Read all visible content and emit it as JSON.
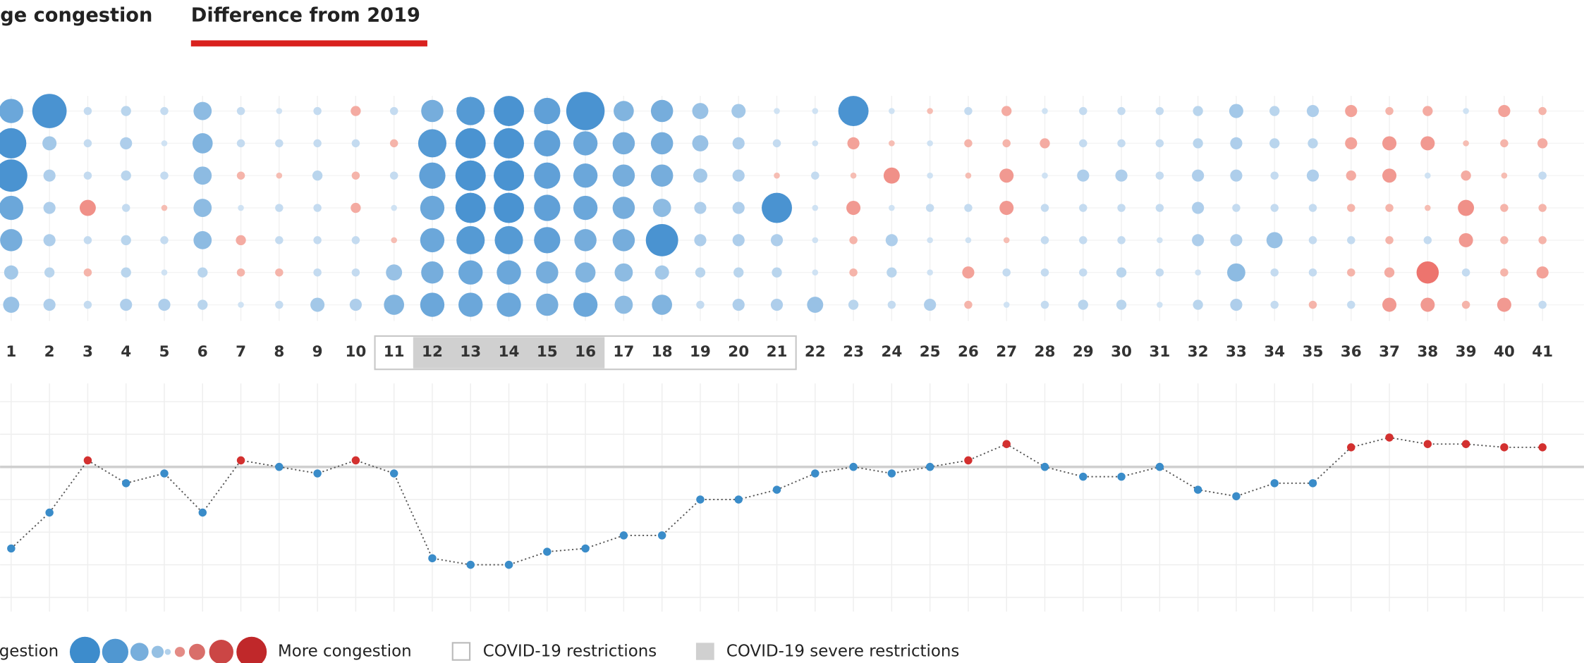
{
  "tabs": [
    "ge congestion",
    "Difference from 2019"
  ],
  "legend": {
    "less": "gestion",
    "more": "More congestion",
    "restrictions": "COVID-19 restrictions",
    "severe": "COVID-19 severe restrictions"
  },
  "chart_data": [
    {
      "type": "bubble_matrix",
      "categories": [
        1,
        2,
        3,
        4,
        5,
        6,
        7,
        8,
        9,
        10,
        11,
        12,
        13,
        14,
        15,
        16,
        17,
        18,
        19,
        20,
        21,
        22,
        23,
        24,
        25,
        26,
        27,
        28,
        29,
        30,
        31,
        32,
        33,
        34,
        35,
        36,
        37,
        38,
        39,
        40,
        41
      ],
      "restrictions": [
        11,
        21
      ],
      "severe_restrictions": [
        12,
        16
      ],
      "colors": {
        "less": [
          "#cfe2f3",
          "#4a93d1"
        ],
        "more": [
          "#f6bdb3",
          "#e8504c"
        ]
      },
      "columns": [
        [
          -12,
          -15,
          -16,
          -12,
          -11,
          -7,
          -8
        ],
        [
          -17,
          -7,
          -6,
          -6,
          -6,
          -5,
          -6
        ],
        [
          -4,
          -4,
          -4,
          8,
          -4,
          4,
          -4
        ],
        [
          -5,
          -6,
          -5,
          -4,
          -5,
          -5,
          -6
        ],
        [
          -4,
          -3,
          -4,
          3,
          -4,
          -3,
          -6
        ],
        [
          -9,
          -10,
          -9,
          -9,
          -9,
          -5,
          -5
        ],
        [
          -4,
          -4,
          4,
          -3,
          5,
          4,
          -3
        ],
        [
          -3,
          -4,
          3,
          -4,
          -4,
          4,
          -4
        ],
        [
          -4,
          -4,
          -5,
          -4,
          -4,
          -4,
          -7
        ],
        [
          5,
          -4,
          4,
          5,
          -4,
          -4,
          -6
        ],
        [
          -4,
          4,
          -4,
          -3,
          3,
          -8,
          -10
        ],
        [
          -11,
          -14,
          -13,
          -12,
          -12,
          -11,
          -12
        ],
        [
          -14,
          -15,
          -15,
          -15,
          -14,
          -12,
          -12
        ],
        [
          -15,
          -15,
          -15,
          -15,
          -14,
          -12,
          -12
        ],
        [
          -13,
          -13,
          -13,
          -13,
          -13,
          -11,
          -11
        ],
        [
          -19,
          -12,
          -12,
          -12,
          -11,
          -10,
          -12
        ],
        [
          -10,
          -11,
          -11,
          -11,
          -11,
          -9,
          -9
        ],
        [
          -11,
          -11,
          -11,
          -9,
          -16,
          -7,
          -10
        ],
        [
          -8,
          -8,
          -7,
          -6,
          -6,
          -5,
          -4
        ],
        [
          -7,
          -6,
          -6,
          -6,
          -6,
          -5,
          -6
        ],
        [
          -3,
          -4,
          3,
          -15,
          -6,
          -5,
          -6
        ],
        [
          -3,
          -3,
          -4,
          -3,
          -3,
          -3,
          -8
        ],
        [
          -15,
          6,
          3,
          7,
          4,
          4,
          -5
        ],
        [
          -3,
          3,
          8,
          -3,
          -6,
          -5,
          -4
        ],
        [
          3,
          -3,
          -3,
          -4,
          -3,
          -3,
          -6
        ],
        [
          -4,
          4,
          3,
          -4,
          -3,
          6,
          4
        ],
        [
          5,
          4,
          7,
          7,
          3,
          -4,
          -3
        ],
        [
          -3,
          5,
          -3,
          -4,
          -4,
          -4,
          -4
        ],
        [
          -4,
          -4,
          -6,
          -4,
          -4,
          -4,
          -5
        ],
        [
          -4,
          -4,
          -6,
          -4,
          -4,
          -5,
          -5
        ],
        [
          -4,
          -4,
          -4,
          -4,
          -3,
          -4,
          -3
        ],
        [
          -5,
          -5,
          -6,
          -6,
          -6,
          -3,
          -5
        ],
        [
          -7,
          -6,
          -6,
          -4,
          -6,
          -9,
          -6
        ],
        [
          -5,
          -5,
          -4,
          -4,
          -8,
          -4,
          -4
        ],
        [
          -6,
          -5,
          -6,
          -4,
          -4,
          -4,
          4
        ],
        [
          6,
          6,
          5,
          4,
          -4,
          4,
          -4
        ],
        [
          4,
          7,
          7,
          4,
          4,
          5,
          7
        ],
        [
          5,
          7,
          -3,
          3,
          -4,
          11,
          7
        ],
        [
          -3,
          3,
          5,
          8,
          7,
          -4,
          4
        ],
        [
          6,
          4,
          3,
          4,
          4,
          4,
          7
        ],
        [
          4,
          5,
          -4,
          4,
          4,
          6,
          -4
        ]
      ]
    },
    {
      "type": "line",
      "values": [
        -12.5,
        -7,
        1,
        -2.5,
        -1,
        -7,
        1,
        0,
        -1,
        1,
        -1,
        -14,
        -15,
        -15,
        -13,
        -12.5,
        -10.5,
        -10.5,
        -5,
        -5,
        -3.5,
        -1,
        0,
        -1,
        0,
        1,
        3.5,
        0,
        -1.5,
        -1.5,
        0,
        -3.5,
        -4.5,
        -2.5,
        -2.5,
        3,
        4.5,
        3.5,
        3.5,
        3,
        3
      ],
      "ylim": [
        -20,
        10
      ],
      "yticks": [
        -20,
        -15,
        -10,
        -5,
        0,
        5,
        10
      ],
      "colors": {
        "positive": "#d3302f",
        "negative": "#3a8cc9",
        "line": "#555"
      }
    }
  ]
}
